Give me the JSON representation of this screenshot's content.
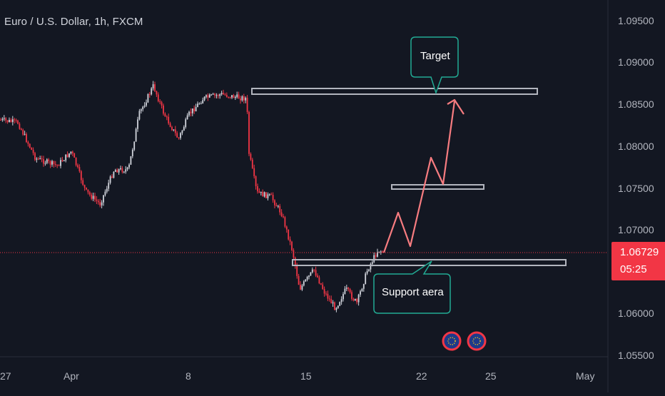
{
  "header": {
    "symbol_title": "Euro / U.S. Dollar, 1h, FXCM"
  },
  "price_axis": {
    "ticks": [
      "1.09500",
      "1.09000",
      "1.08500",
      "1.08000",
      "1.07500",
      "1.07000",
      "1.06000",
      "1.05500"
    ],
    "current_price": "1.06729",
    "countdown": "05:25"
  },
  "time_axis": {
    "ticks": [
      "27",
      "Apr",
      "8",
      "15",
      "22",
      "25",
      "May"
    ]
  },
  "annotations": {
    "target_label": "Target",
    "support_label": "Support aera"
  },
  "events": [
    {
      "icon": "eu-flag-icon"
    },
    {
      "icon": "eu-flag-icon"
    }
  ],
  "colors": {
    "background": "#131722",
    "up_candle": "#d1d4dc",
    "down_candle": "#f23645",
    "current_price_line": "#f23645",
    "forecast_path": "#f77c80",
    "zone_border": "#b2b5be",
    "callout_border": "#22ab94"
  }
}
